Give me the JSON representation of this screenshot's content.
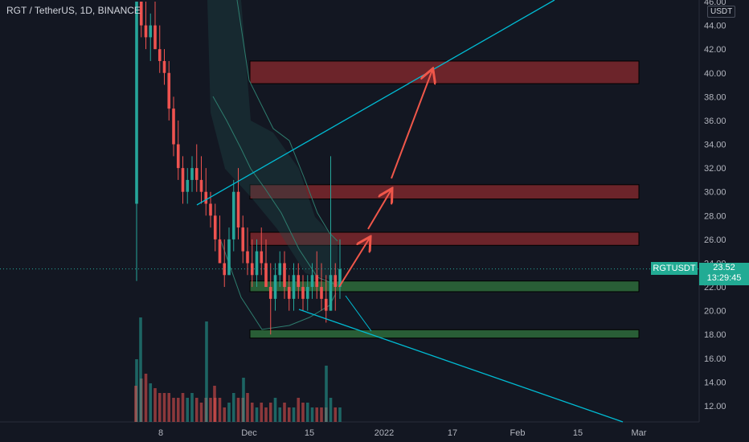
{
  "header": {
    "title": "RGT / TetherUS, 1D, BINANCE"
  },
  "axis": {
    "currency": "USDT",
    "price_ticks": [
      "46.00",
      "44.00",
      "42.00",
      "40.00",
      "38.00",
      "36.00",
      "34.00",
      "32.00",
      "30.00",
      "28.00",
      "26.00",
      "24.00",
      "22.00",
      "20.00",
      "18.00",
      "16.00",
      "14.00",
      "12.00"
    ],
    "time_ticks": [
      "8",
      "Dec",
      "15",
      "2022",
      "17",
      "Feb",
      "15",
      "Mar"
    ]
  },
  "last_price": {
    "symbol": "RGTUSDT",
    "price": "23.52",
    "countdown": "13:29:45"
  },
  "colors": {
    "background": "#131722",
    "up": "#26a69a",
    "down": "#ef5350",
    "trendline": "#00bcd4",
    "resistance_zone": "#8b2a2e",
    "support_zone": "#2e6b3a",
    "arrow": "#f0574a",
    "band": "#2e7d6e"
  },
  "chart_data": {
    "type": "candlestick",
    "x_axis_labels": [
      "8",
      "Dec",
      "15",
      "2022",
      "17",
      "Feb",
      "15",
      "Mar"
    ],
    "y_axis": {
      "unit": "USDT",
      "range": [
        11,
        46
      ]
    },
    "last_price": 23.52,
    "resistance_zones": [
      [
        39.1,
        41.0
      ],
      [
        29.4,
        30.6
      ],
      [
        25.5,
        26.6
      ]
    ],
    "support_zones": [
      [
        21.6,
        22.5
      ],
      [
        17.7,
        18.4
      ]
    ],
    "candles_ohlc": [
      [
        29,
        46,
        22.5,
        46
      ],
      [
        46,
        46,
        43,
        44
      ],
      [
        44,
        46,
        42,
        43
      ],
      [
        43,
        45,
        41,
        44
      ],
      [
        44,
        46,
        42,
        42
      ],
      [
        42,
        44,
        40,
        41
      ],
      [
        41,
        42,
        39,
        40
      ],
      [
        40,
        41,
        36,
        37
      ],
      [
        37,
        38,
        33,
        34
      ],
      [
        34,
        36,
        31,
        32
      ],
      [
        32,
        33,
        29,
        30
      ],
      [
        30,
        32,
        29,
        31
      ],
      [
        31,
        33,
        30,
        32
      ],
      [
        32,
        34,
        30,
        31
      ],
      [
        31,
        33,
        29,
        30
      ],
      [
        30,
        32,
        28,
        29
      ],
      [
        29,
        30,
        27,
        28
      ],
      [
        28,
        29,
        25,
        26
      ],
      [
        26,
        28,
        24,
        24
      ],
      [
        24,
        26,
        22,
        23
      ],
      [
        23,
        27,
        23,
        26
      ],
      [
        26,
        31,
        25,
        30
      ],
      [
        30,
        32,
        26,
        27
      ],
      [
        27,
        28,
        24,
        25
      ],
      [
        25,
        27,
        23,
        24
      ],
      [
        24,
        26,
        22,
        23
      ],
      [
        23,
        26,
        22,
        25
      ],
      [
        25,
        27,
        23,
        24
      ],
      [
        24,
        26,
        22,
        22
      ],
      [
        22,
        24,
        18,
        21
      ],
      [
        21,
        24,
        20,
        23
      ],
      [
        23,
        25,
        22,
        24
      ],
      [
        24,
        25,
        21,
        22
      ],
      [
        22,
        23,
        20,
        21
      ],
      [
        21,
        24,
        20,
        23
      ],
      [
        23,
        24,
        21,
        22
      ],
      [
        22,
        23,
        20,
        21
      ],
      [
        21,
        23,
        20,
        22
      ],
      [
        22,
        24,
        21,
        23
      ],
      [
        23,
        25,
        21,
        22
      ],
      [
        22,
        24,
        20,
        21
      ],
      [
        21,
        23,
        19,
        20
      ],
      [
        20,
        33,
        20,
        23
      ],
      [
        23,
        24,
        20,
        22
      ],
      [
        22,
        26,
        21,
        23.5
      ]
    ],
    "volume": [
      13,
      9,
      10,
      8,
      7,
      6,
      6,
      6,
      5,
      5,
      6,
      5,
      6,
      5,
      4,
      5,
      5,
      5,
      5,
      3,
      4,
      6,
      5,
      5,
      6,
      4,
      3,
      4,
      3,
      4,
      5,
      3,
      4,
      3,
      3,
      5,
      4,
      4,
      3,
      3,
      3,
      3,
      5,
      3,
      3
    ]
  }
}
